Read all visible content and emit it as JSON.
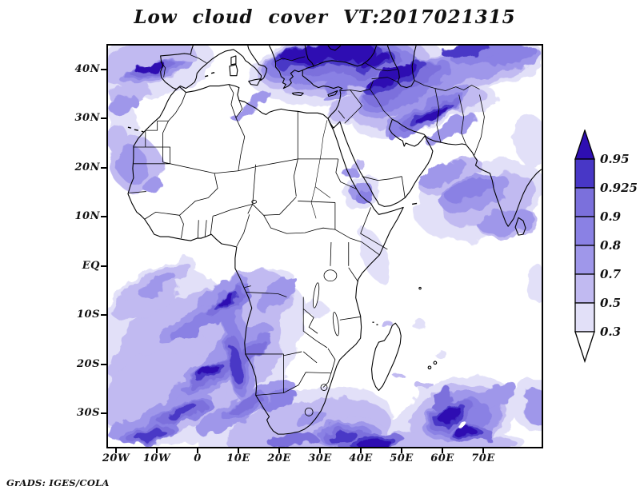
{
  "title": "Low cloud cover VT:2017021315",
  "attribution": "GrADS: IGES/COLA",
  "map": {
    "x_axis": {
      "labels": [
        "20W",
        "10W",
        "0",
        "10E",
        "20E",
        "30E",
        "40E",
        "50E",
        "60E",
        "70E"
      ]
    },
    "y_axis": {
      "labels": [
        "40N",
        "30N",
        "20N",
        "10N",
        "EQ",
        "10S",
        "20S",
        "30S"
      ]
    }
  },
  "colorbar": {
    "labels": [
      "0.95",
      "0.925",
      "0.9",
      "0.8",
      "0.7",
      "0.5",
      "0.3"
    ],
    "segment_colors": [
      "#4837c6",
      "#7b70dc",
      "#8a81e4",
      "#9f97ea",
      "#c1baf1",
      "#e2e0f8"
    ],
    "arrow_top_color": "#2e0eb2",
    "arrow_bottom_color": "#ffffff",
    "outline_color": "#000000"
  },
  "chart_data": {
    "type": "heatmap",
    "title": "Low cloud cover VT:2017021315",
    "x_ticks": [
      "20W",
      "10W",
      "0",
      "10E",
      "20E",
      "30E",
      "40E",
      "50E",
      "60E",
      "70E"
    ],
    "y_ticks": [
      "40N",
      "30N",
      "20N",
      "10N",
      "EQ",
      "10S",
      "20S",
      "30S"
    ],
    "levels": [
      0.3,
      0.5,
      0.7,
      0.8,
      0.9,
      0.925,
      0.95
    ],
    "level_colors_low_to_high": [
      "#e2e0f8",
      "#c1baf1",
      "#9f97ea",
      "#8a81e4",
      "#7b70dc",
      "#4837c6",
      "#2e0eb2"
    ],
    "legend_position": "right",
    "grid": false,
    "notable_features": [
      "Dense cloud (>0.95) over NE Mediterranean, Greece, Turkey, Black Sea, Caucasus and Caspian region",
      "Dark cloud band stretching southeast across Iran toward the Persian Gulf",
      "Streaky stratocumulus field over the South Atlantic off Angola/Namibia, 0S-37S",
      "Spiral tropical cyclone in the south Indian Ocean near 57E 31S with clear eye",
      "Cloud along the South African south coast and along 35S at the bottom edge",
      "Patches east of Somalia / Gulf of Aden and over the Arabian Sea",
      "Light streak over the far NE Atlantic near 42N and scattered specks near Iberia",
      "Continental Africa largely cloud-free near the equator"
    ]
  }
}
